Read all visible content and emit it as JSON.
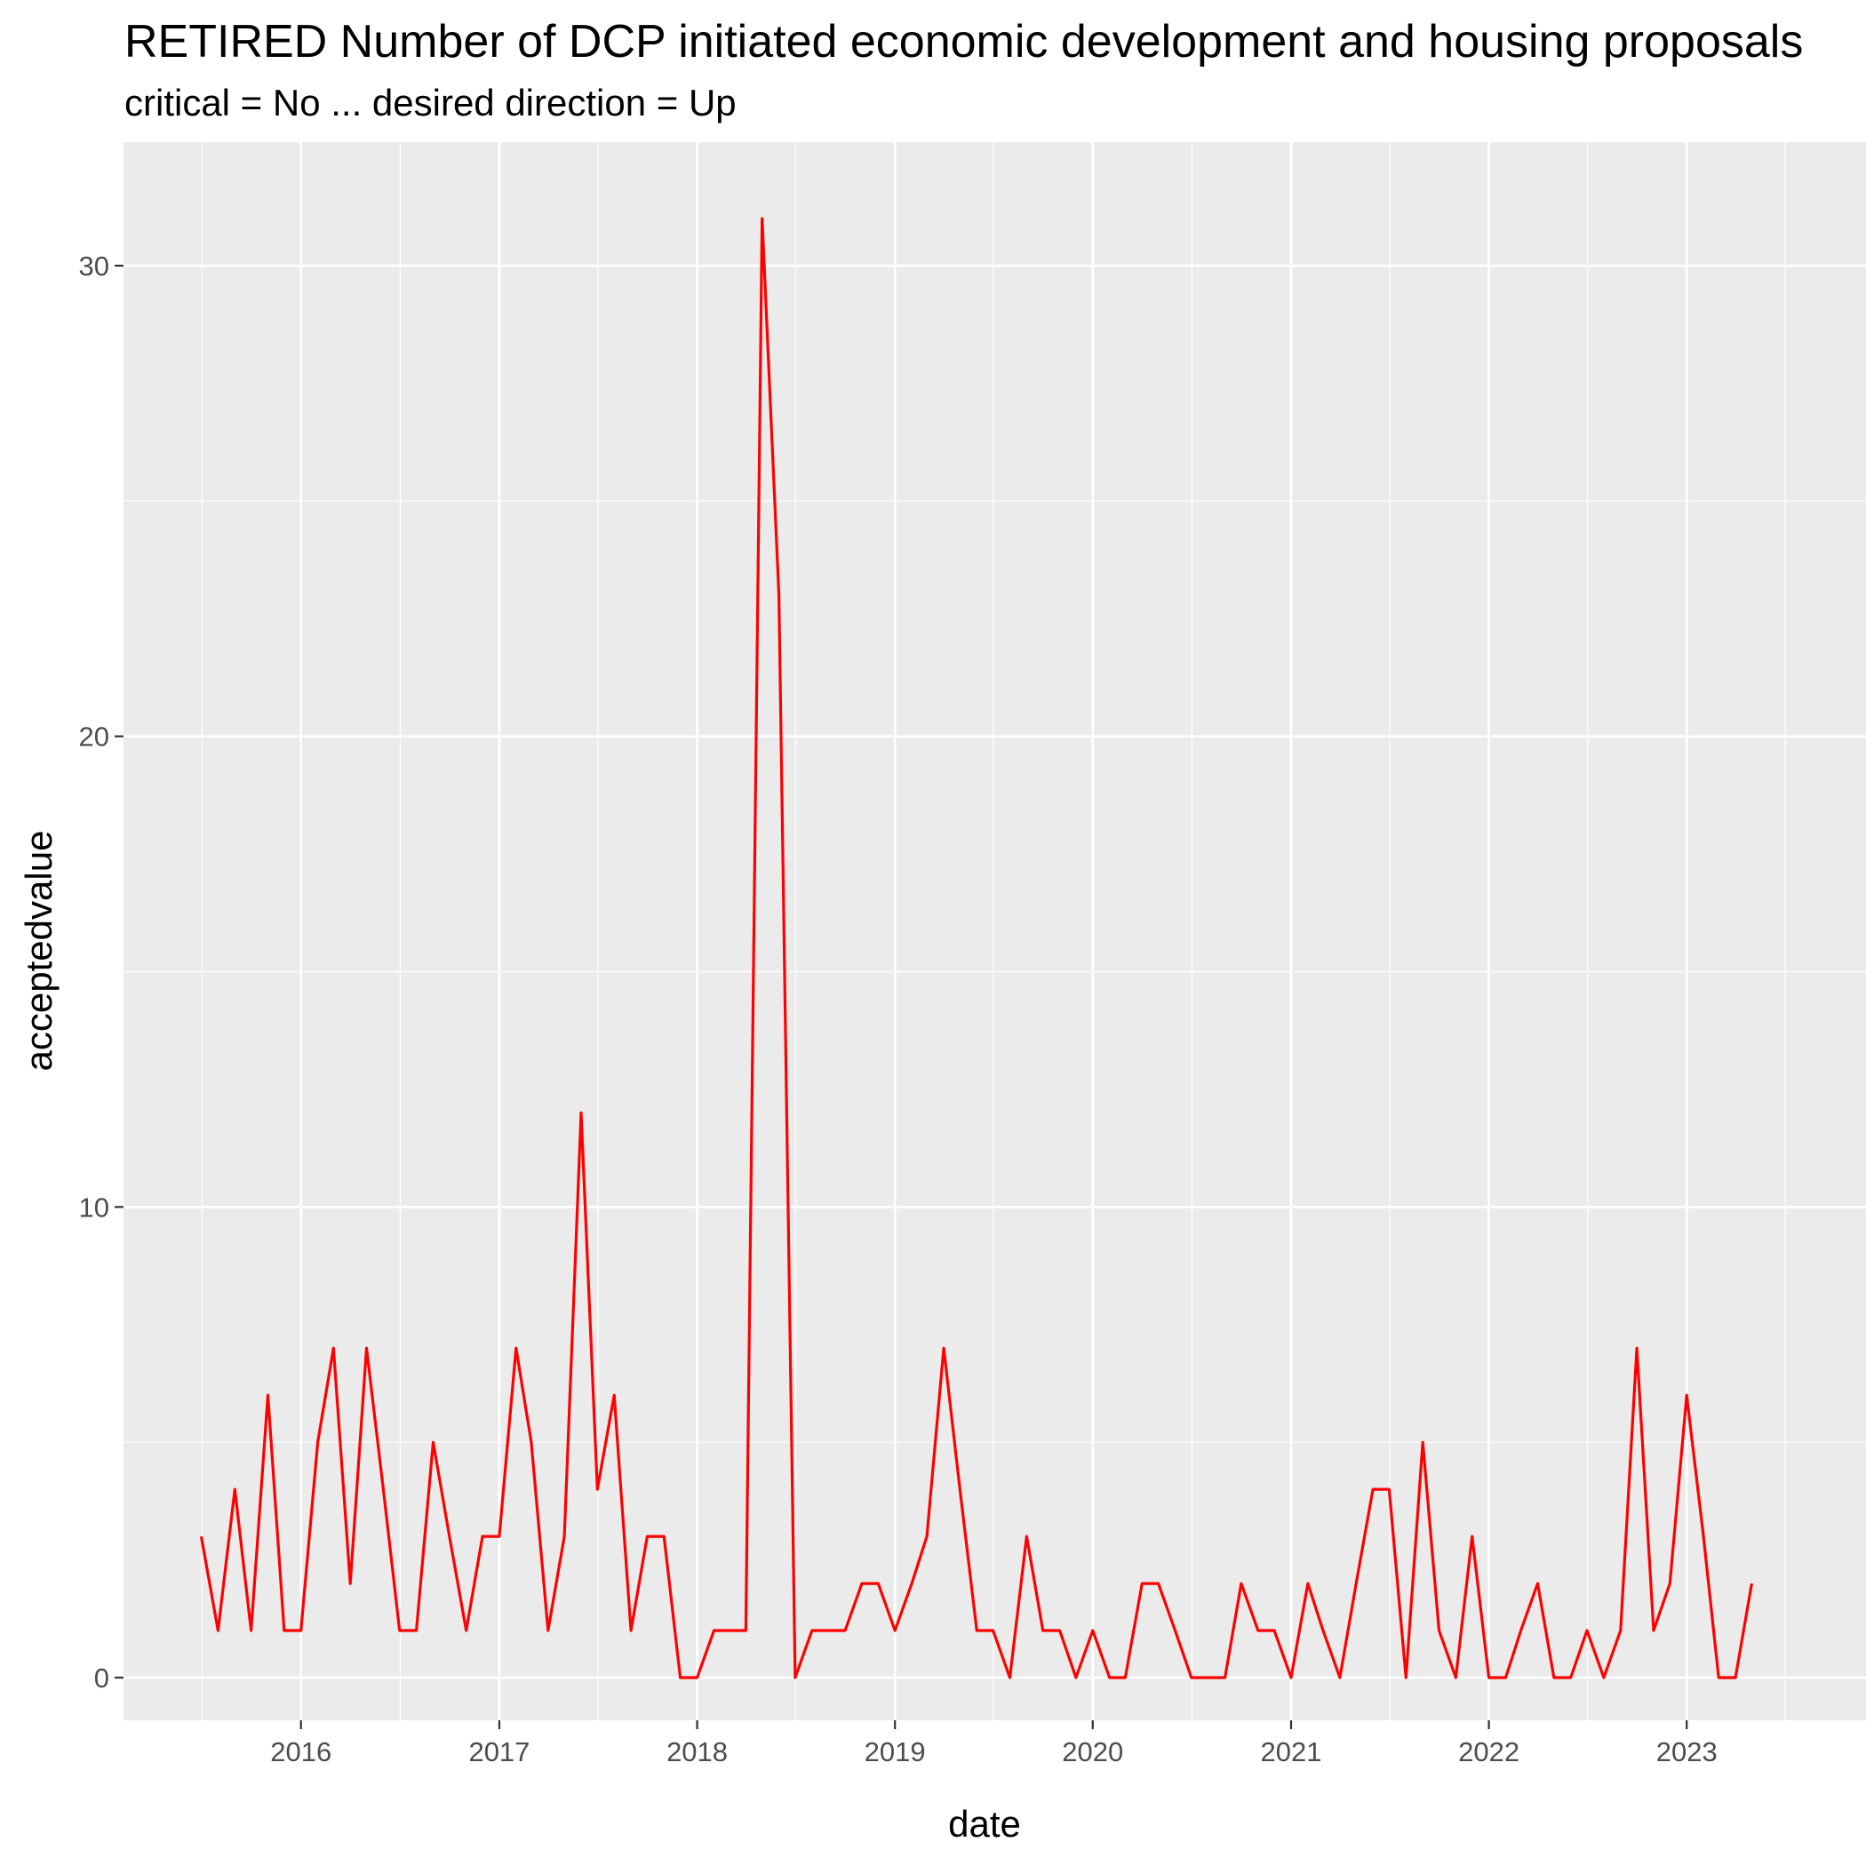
{
  "chart_data": {
    "type": "line",
    "title": "RETIRED Number of DCP initiated economic development and housing proposals",
    "subtitle": "critical = No ... desired direction = Up",
    "xlabel": "date",
    "ylabel": "acceptedvalue",
    "x_ticks": [
      "2016",
      "2017",
      "2018",
      "2019",
      "2020",
      "2021",
      "2022",
      "2023"
    ],
    "y_ticks": [
      "0",
      "10",
      "20",
      "30"
    ],
    "ylim": [
      -0.6,
      32.6
    ],
    "xlim": [
      "2015-05-13",
      "2023-08-20"
    ],
    "grid": true,
    "legend": "none",
    "series": [
      {
        "color": "#ff0000",
        "x": [
          "2015-07-01",
          "2015-08-01",
          "2015-09-01",
          "2015-10-01",
          "2015-11-01",
          "2015-12-01",
          "2016-01-01",
          "2016-02-01",
          "2016-03-01",
          "2016-04-01",
          "2016-05-01",
          "2016-06-01",
          "2016-07-01",
          "2016-08-01",
          "2016-09-01",
          "2016-10-01",
          "2016-11-01",
          "2016-12-01",
          "2017-01-01",
          "2017-02-01",
          "2017-03-01",
          "2017-04-01",
          "2017-05-01",
          "2017-06-01",
          "2017-07-01",
          "2017-08-01",
          "2017-09-01",
          "2017-10-01",
          "2017-11-01",
          "2017-12-01",
          "2018-01-01",
          "2018-02-01",
          "2018-03-01",
          "2018-04-01",
          "2018-05-01",
          "2018-06-01",
          "2018-07-01",
          "2018-08-01",
          "2018-09-01",
          "2018-10-01",
          "2018-11-01",
          "2018-12-01",
          "2019-01-01",
          "2019-02-01",
          "2019-03-01",
          "2019-04-01",
          "2019-05-01",
          "2019-06-01",
          "2019-07-01",
          "2019-08-01",
          "2019-09-01",
          "2019-10-01",
          "2019-11-01",
          "2019-12-01",
          "2020-01-01",
          "2020-02-01",
          "2020-03-01",
          "2020-04-01",
          "2020-05-01",
          "2020-06-01",
          "2020-07-01",
          "2020-08-01",
          "2020-09-01",
          "2020-10-01",
          "2020-11-01",
          "2020-12-01",
          "2021-01-01",
          "2021-02-01",
          "2021-03-01",
          "2021-04-01",
          "2021-05-01",
          "2021-06-01",
          "2021-07-01",
          "2021-08-01",
          "2021-09-01",
          "2021-10-01",
          "2021-11-01",
          "2021-12-01",
          "2022-01-01",
          "2022-02-01",
          "2022-03-01",
          "2022-04-01",
          "2022-05-01",
          "2022-06-01",
          "2022-07-01",
          "2022-08-01",
          "2022-09-01",
          "2022-10-01",
          "2022-11-01",
          "2022-12-01",
          "2023-01-01",
          "2023-02-01",
          "2023-03-01",
          "2023-04-01",
          "2023-05-01"
        ],
        "values": [
          3,
          1,
          4,
          1,
          6,
          1,
          1,
          5,
          7,
          2,
          7,
          4,
          1,
          1,
          5,
          3,
          1,
          3,
          3,
          7,
          5,
          1,
          3,
          12,
          4,
          6,
          1,
          3,
          3,
          0,
          0,
          1,
          1,
          1,
          31,
          23,
          0,
          1,
          1,
          1,
          2,
          2,
          1,
          2,
          3,
          7,
          4,
          1,
          1,
          0,
          3,
          1,
          1,
          0,
          1,
          0,
          0,
          2,
          2,
          1,
          0,
          0,
          0,
          2,
          1,
          1,
          0,
          2,
          1,
          0,
          2,
          4,
          4,
          0,
          5,
          1,
          0,
          3,
          0,
          0,
          1,
          2,
          0,
          0,
          1,
          0,
          1,
          7,
          1,
          2,
          6,
          3,
          0,
          0,
          2
        ]
      }
    ]
  }
}
